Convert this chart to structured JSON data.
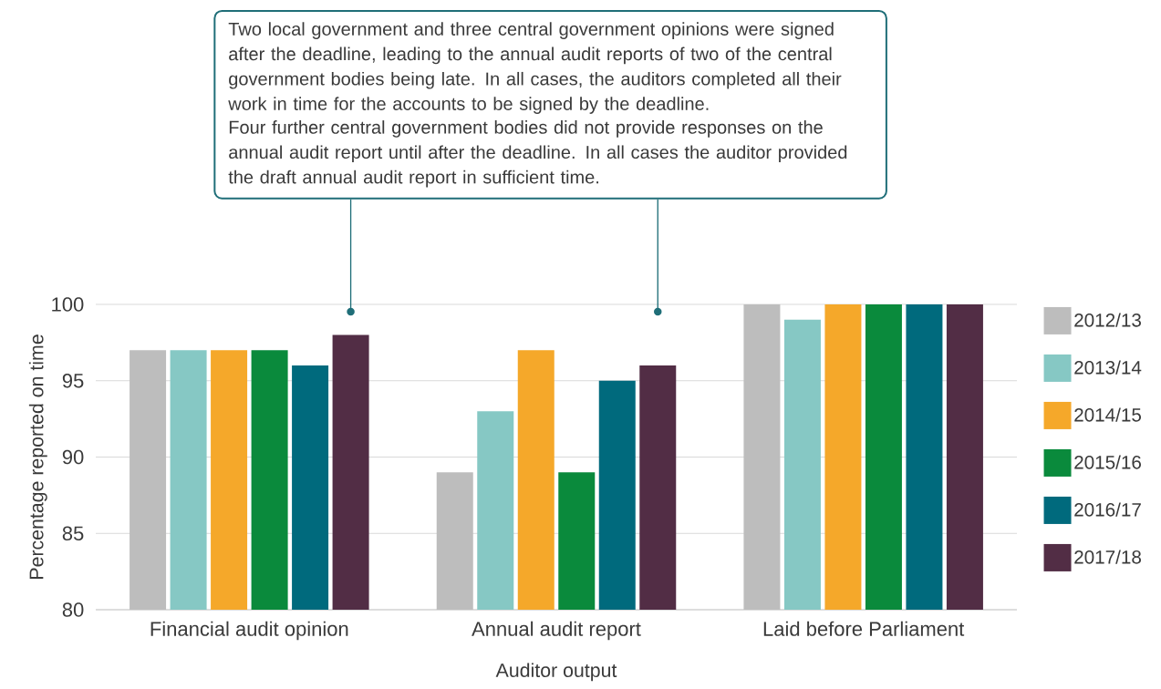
{
  "chart_data": {
    "type": "bar",
    "xlabel": "Auditor output",
    "ylabel": "Percentage reported on time",
    "categories": [
      "Financial audit opinion",
      "Annual audit report",
      "Laid before Parliament"
    ],
    "series": [
      {
        "name": "2012/13",
        "color": "#bdbdbd",
        "values": [
          97,
          89,
          100
        ]
      },
      {
        "name": "2013/14",
        "color": "#86c8c4",
        "values": [
          97,
          93,
          99
        ]
      },
      {
        "name": "2014/15",
        "color": "#f5a82a",
        "values": [
          97,
          97,
          100
        ]
      },
      {
        "name": "2015/16",
        "color": "#0a8a3c",
        "values": [
          97,
          89,
          100
        ]
      },
      {
        "name": "2016/17",
        "color": "#006a7d",
        "values": [
          96,
          95,
          100
        ]
      },
      {
        "name": "2017/18",
        "color": "#522d45",
        "values": [
          98,
          96,
          100
        ]
      }
    ],
    "ylim": [
      80,
      100
    ],
    "yticks": [
      80,
      85,
      90,
      95,
      100
    ],
    "grid": "y",
    "legend": "right",
    "annotations": [
      "Two local government and three central government opinions were signed after the deadline, leading to the annual audit reports of two of the central government bodies being late. In all cases, the auditors completed all their work in time for the accounts to be signed by the deadline.",
      "Four further central government bodies did not provide responses on the annual audit report until after the deadline. In all cases the auditor provided the draft annual audit report in sufficient time."
    ]
  }
}
